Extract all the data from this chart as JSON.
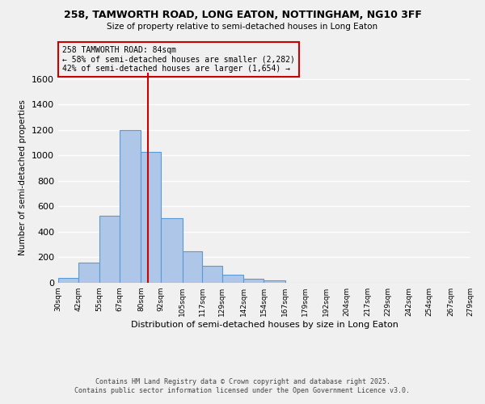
{
  "title_line1": "258, TAMWORTH ROAD, LONG EATON, NOTTINGHAM, NG10 3FF",
  "title_line2": "Size of property relative to semi-detached houses in Long Eaton",
  "xlabel": "Distribution of semi-detached houses by size in Long Eaton",
  "ylabel": "Number of semi-detached properties",
  "bar_edges": [
    30,
    42,
    55,
    67,
    80,
    92,
    105,
    117,
    129,
    142,
    154,
    167,
    179,
    192,
    204,
    217,
    229,
    242,
    254,
    267,
    279
  ],
  "bar_heights": [
    35,
    160,
    525,
    1200,
    1025,
    505,
    245,
    135,
    65,
    30,
    20,
    0,
    0,
    0,
    0,
    0,
    0,
    0,
    0,
    0
  ],
  "bar_color": "#aec6e8",
  "bar_edge_color": "#5b9bd5",
  "vline_x": 84,
  "vline_color": "#cc0000",
  "annotation_title": "258 TAMWORTH ROAD: 84sqm",
  "annotation_line2": "← 58% of semi-detached houses are smaller (2,282)",
  "annotation_line3": "42% of semi-detached houses are larger (1,654) →",
  "annotation_box_color": "#cc0000",
  "ylim": [
    0,
    1650
  ],
  "yticks": [
    0,
    200,
    400,
    600,
    800,
    1000,
    1200,
    1400,
    1600
  ],
  "tick_labels": [
    "30sqm",
    "42sqm",
    "55sqm",
    "67sqm",
    "80sqm",
    "92sqm",
    "105sqm",
    "117sqm",
    "129sqm",
    "142sqm",
    "154sqm",
    "167sqm",
    "179sqm",
    "192sqm",
    "204sqm",
    "217sqm",
    "229sqm",
    "242sqm",
    "254sqm",
    "267sqm",
    "279sqm"
  ],
  "footer_line1": "Contains HM Land Registry data © Crown copyright and database right 2025.",
  "footer_line2": "Contains public sector information licensed under the Open Government Licence v3.0.",
  "background_color": "#f0f0f0",
  "grid_color": "#ffffff"
}
